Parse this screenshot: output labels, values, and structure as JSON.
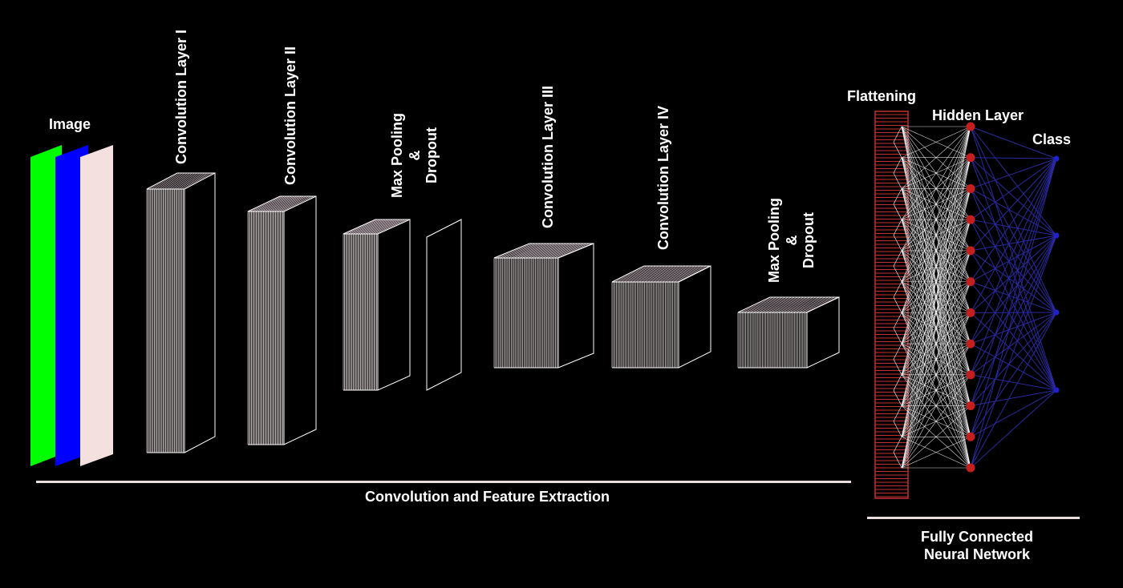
{
  "labels": {
    "image": "Image",
    "conv1": "Convolution Layer I",
    "conv2": "Convolution Layer II",
    "maxpool1": "Max Pooling",
    "amp1": "&",
    "dropout1": "Dropout",
    "conv3": "Convolution Layer III",
    "conv4": "Convolution Layer IV",
    "maxpool2": "Max Pooling",
    "amp2": "&",
    "dropout2": "Dropout",
    "flattening": "Flattening",
    "hidden": "Hidden Layer",
    "class": "Class",
    "feature_extraction": "Convolution and Feature Extraction",
    "fc_line1": "Fully Connected",
    "fc_line2": "Neural Network"
  },
  "colors": {
    "background": "#000000",
    "channel_red": "#ff0000",
    "channel_green": "#00ff00",
    "channel_blue": "#0000ff",
    "channel_light": "#f5e0e0",
    "hidden_node": "#c41e1e",
    "class_node": "#2020cc",
    "input_connections": "#ffffff",
    "output_connections": "#2a2aa0",
    "flatten_bar": "#c03030"
  },
  "network": {
    "input_channels": [
      "green",
      "blue",
      "light"
    ],
    "feature_blocks": [
      "conv1",
      "conv2",
      "maxpool1",
      "dropout1",
      "conv3",
      "conv4",
      "maxpool2"
    ],
    "hidden_nodes": 12,
    "class_nodes": 4
  }
}
